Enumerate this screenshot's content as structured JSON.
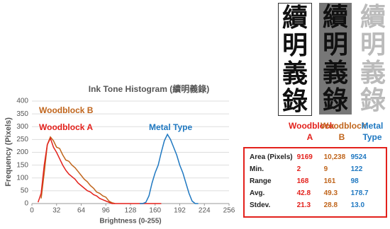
{
  "chart_data": {
    "type": "line",
    "title": "Ink Tone Histogram (續明義錄)",
    "x_label": "Brightness (0-255)",
    "y_label": "Frequency (Pixels)",
    "x": [
      0,
      4,
      8,
      12,
      16,
      20,
      24,
      28,
      32,
      36,
      40,
      44,
      48,
      52,
      56,
      60,
      64,
      68,
      72,
      76,
      80,
      84,
      88,
      92,
      96,
      100,
      104,
      108,
      112,
      116,
      120,
      124,
      128,
      132,
      136,
      140,
      144,
      148,
      152,
      156,
      160,
      164,
      168,
      172,
      176,
      180,
      184,
      188,
      192,
      196,
      200,
      204,
      208,
      212,
      216,
      220,
      224,
      228,
      232,
      236,
      240,
      244,
      248,
      252,
      256
    ],
    "series": [
      {
        "name": "Woodblock B",
        "color": "#c0651c",
        "values": [
          null,
          null,
          null,
          20,
          120,
          230,
          260,
          245,
          220,
          215,
          190,
          170,
          165,
          150,
          140,
          125,
          110,
          95,
          85,
          70,
          60,
          45,
          40,
          30,
          25,
          10,
          3,
          0,
          null,
          null,
          null,
          null,
          null,
          null,
          null,
          null,
          null,
          null,
          null,
          null,
          null,
          null,
          null,
          null,
          null,
          null,
          null,
          null,
          null,
          null,
          null,
          null,
          null,
          null,
          null,
          null,
          null,
          null,
          null,
          null,
          null,
          null,
          null,
          null,
          null
        ]
      },
      {
        "name": "Woodblock A",
        "color": "#e3211c",
        "values": [
          null,
          null,
          5,
          40,
          150,
          230,
          255,
          220,
          200,
          175,
          150,
          130,
          115,
          105,
          95,
          80,
          70,
          60,
          50,
          45,
          35,
          30,
          20,
          15,
          10,
          5,
          0,
          0,
          0,
          0,
          0,
          0,
          0,
          0,
          0,
          0,
          0,
          0,
          0,
          0,
          0,
          0,
          0,
          null,
          null,
          null,
          null,
          null,
          null,
          null,
          null,
          null,
          null,
          null,
          null,
          null,
          null,
          null,
          null,
          null,
          null,
          null,
          null,
          null,
          null
        ]
      },
      {
        "name": "Metal Type",
        "color": "#1f78c1",
        "values": [
          null,
          null,
          null,
          null,
          null,
          null,
          null,
          null,
          null,
          null,
          null,
          null,
          null,
          null,
          null,
          null,
          null,
          null,
          null,
          null,
          null,
          null,
          null,
          null,
          null,
          null,
          null,
          null,
          null,
          null,
          null,
          null,
          null,
          null,
          null,
          0,
          0,
          5,
          30,
          80,
          120,
          150,
          200,
          245,
          270,
          250,
          220,
          190,
          150,
          120,
          80,
          40,
          10,
          0,
          0,
          null,
          null,
          null,
          null,
          null,
          null,
          null,
          null,
          null,
          null
        ]
      }
    ],
    "xlim": [
      0,
      256
    ],
    "xticks": [
      0,
      32,
      64,
      96,
      128,
      160,
      192,
      224,
      256
    ],
    "ylim": [
      0,
      400
    ],
    "yticks": [
      0,
      50,
      100,
      150,
      200,
      250,
      300,
      350,
      400
    ],
    "grid": true
  },
  "calligraphy": [
    "續",
    "明",
    "義",
    "錄"
  ],
  "table": {
    "header": [
      "Woodblock A",
      "Woodblock B",
      "Metal Type"
    ],
    "rows": [
      [
        "Area (Pixels)",
        "9169",
        "10,238",
        "9524"
      ],
      [
        "Min.",
        "2",
        "9",
        "122"
      ],
      [
        "Range",
        "168",
        "161",
        "98"
      ],
      [
        "Avg.",
        "42.8",
        "49.3",
        "178.7"
      ],
      [
        "Stdev.",
        "21.3",
        "28.8",
        "13.0"
      ]
    ]
  }
}
